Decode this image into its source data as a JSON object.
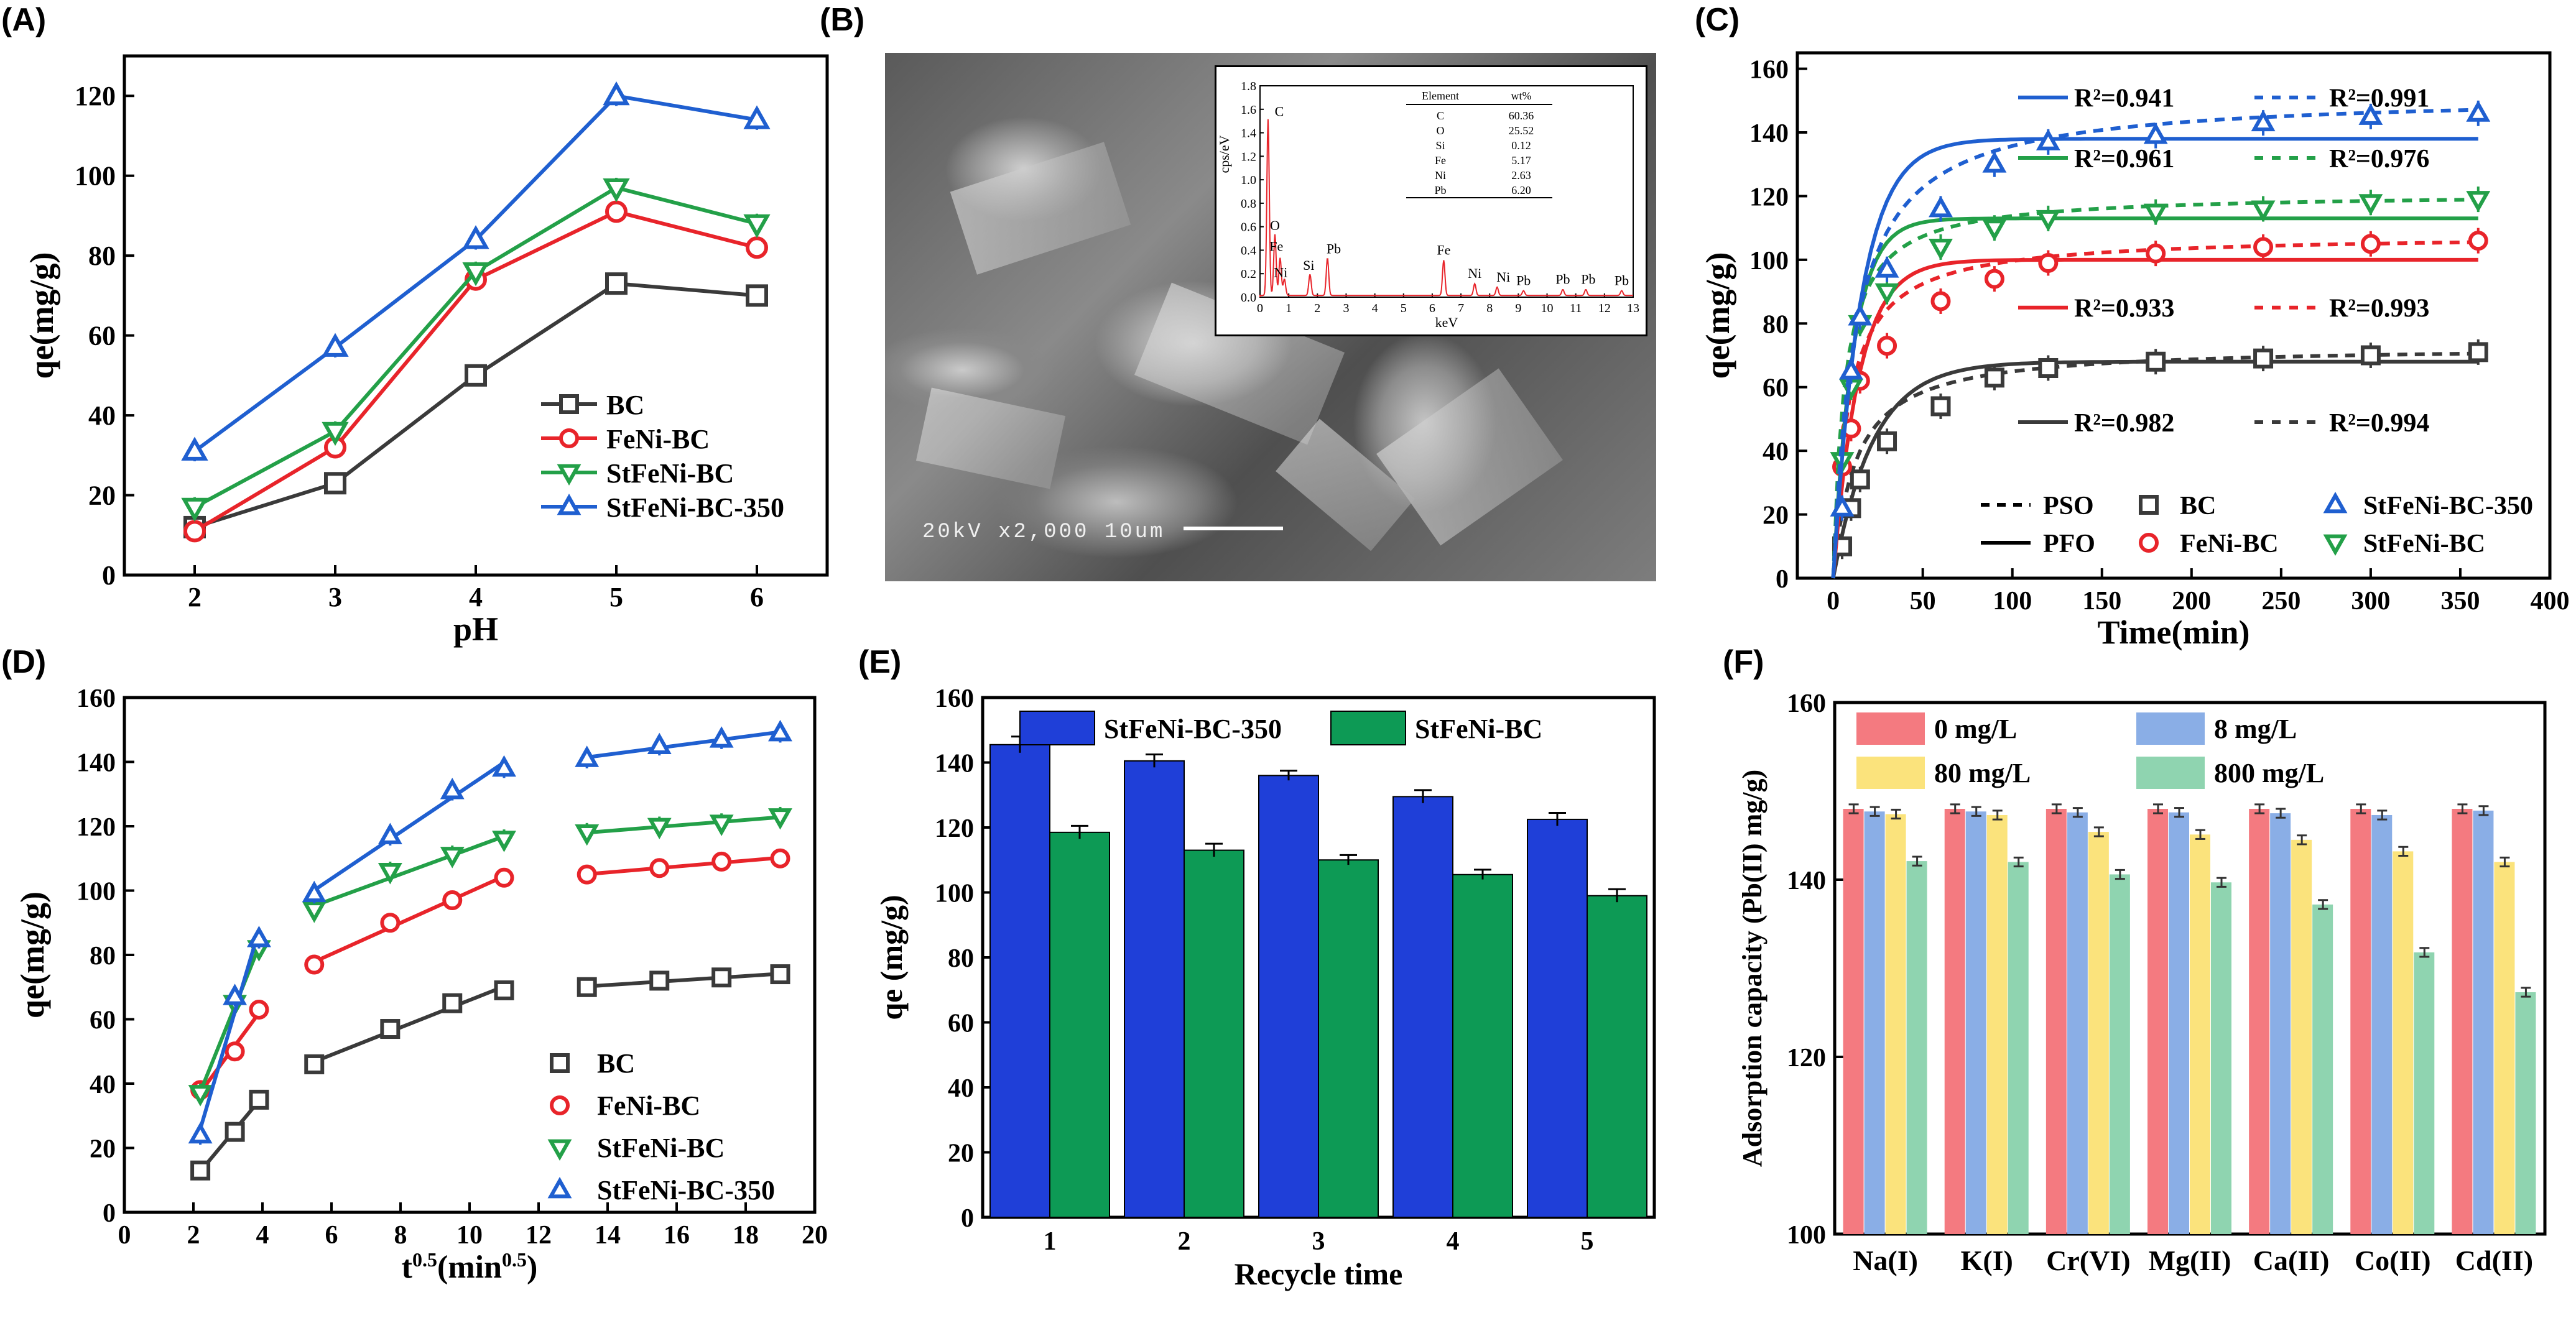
{
  "figure": {
    "panel_labels": [
      "(A)",
      "(B)",
      "(C)",
      "(D)",
      "(E)",
      "(F)"
    ],
    "colors": {
      "BC": "#3a3a3a",
      "FeNi-BC": "#e8242a",
      "StFeNi-BC": "#23a048",
      "StFeNi-BC-350": "#1f5fd0",
      "barBlue": "#1f3fd8",
      "barGreen": "#0d9a55",
      "pink": "#f47a80",
      "lightblue": "#8aaee6",
      "yellow": "#fbe37c",
      "mint": "#8fd4b0"
    }
  },
  "sem": {
    "scale_text": "20kV   x2,000   10um"
  },
  "chart_data": [
    {
      "id": "A",
      "type": "line",
      "xlabel": "pH",
      "ylabel": "qe(mg/g)",
      "xlim": [
        1.5,
        6.5
      ],
      "ylim": [
        0,
        130
      ],
      "xticks": [
        2,
        3,
        4,
        5,
        6
      ],
      "yticks": [
        0,
        20,
        40,
        60,
        80,
        100,
        120
      ],
      "x": [
        2,
        3,
        4,
        5,
        6
      ],
      "series": [
        {
          "name": "BC",
          "marker": "square",
          "color": "#3a3a3a",
          "values": [
            12,
            23,
            50,
            73,
            70
          ]
        },
        {
          "name": "FeNi-BC",
          "marker": "circle",
          "color": "#e8242a",
          "values": [
            11,
            32,
            74,
            91,
            82
          ]
        },
        {
          "name": "StFeNi-BC",
          "marker": "triangle-down",
          "color": "#23a048",
          "values": [
            17,
            36,
            76,
            97,
            88
          ]
        },
        {
          "name": "StFeNi-BC-350",
          "marker": "triangle-up",
          "color": "#1f5fd0",
          "values": [
            31,
            57,
            84,
            120,
            114
          ]
        }
      ],
      "legend": [
        "BC",
        "FeNi-BC",
        "StFeNi-BC",
        "StFeNi-BC-350"
      ]
    },
    {
      "id": "B-inset",
      "type": "line",
      "xlabel": "keV",
      "ylabel": "cps/eV",
      "xlim": [
        0,
        13
      ],
      "ylim": [
        0,
        1.8
      ],
      "xticks": [
        0,
        1,
        2,
        3,
        4,
        5,
        6,
        7,
        8,
        9,
        10,
        11,
        12,
        13
      ],
      "yticks": [
        "0.0",
        "0.2",
        "0.4",
        "0.6",
        "0.8",
        "1.0",
        "1.2",
        "1.4",
        "1.6",
        "1.8"
      ],
      "peaks": [
        {
          "label": "C",
          "x": 0.28,
          "y": 1.5
        },
        {
          "label": "O",
          "x": 0.52,
          "y": 0.52
        },
        {
          "label": "Fe",
          "x": 0.7,
          "y": 0.32
        },
        {
          "label": "Ni",
          "x": 0.85,
          "y": 0.14
        },
        {
          "label": "Si",
          "x": 1.74,
          "y": 0.18
        },
        {
          "label": "Pb",
          "x": 2.35,
          "y": 0.32
        },
        {
          "label": "Fe",
          "x": 6.4,
          "y": 0.3
        },
        {
          "label": "Ni",
          "x": 7.48,
          "y": 0.1
        },
        {
          "label": "Ni",
          "x": 8.26,
          "y": 0.07
        },
        {
          "label": "Pb",
          "x": 9.18,
          "y": 0.04
        },
        {
          "label": "Pb",
          "x": 10.55,
          "y": 0.05
        },
        {
          "label": "Pb",
          "x": 11.35,
          "y": 0.05
        },
        {
          "label": "Pb",
          "x": 12.6,
          "y": 0.04
        }
      ],
      "table": {
        "headers": [
          "Element",
          "wt%"
        ],
        "rows": [
          [
            "C",
            "60.36"
          ],
          [
            "O",
            "25.52"
          ],
          [
            "Si",
            "0.12"
          ],
          [
            "Fe",
            "5.17"
          ],
          [
            "Ni",
            "2.63"
          ],
          [
            "Pb",
            "6.20"
          ]
        ]
      }
    },
    {
      "id": "C",
      "type": "scatter",
      "xlabel": "Time(min)",
      "ylabel": "qe(mg/g)",
      "xlim": [
        -20,
        400
      ],
      "ylim": [
        0,
        165
      ],
      "xticks": [
        0,
        50,
        100,
        150,
        200,
        250,
        300,
        350,
        400
      ],
      "yticks": [
        0,
        20,
        40,
        60,
        80,
        100,
        120,
        140,
        160
      ],
      "x": [
        5,
        10,
        15,
        30,
        60,
        90,
        120,
        180,
        240,
        300,
        360
      ],
      "series": [
        {
          "name": "BC",
          "marker": "square",
          "color": "#3a3a3a",
          "values": [
            10,
            22,
            31,
            43,
            54,
            63,
            66,
            68,
            69,
            70,
            71
          ],
          "pfo": {
            "qe": 68,
            "k": 0.045
          },
          "pso": {
            "qe": 73,
            "k2": 0.0011
          }
        },
        {
          "name": "FeNi-BC",
          "marker": "circle",
          "color": "#e8242a",
          "values": [
            35,
            47,
            62,
            73,
            87,
            94,
            99,
            102,
            104,
            105,
            106
          ],
          "pfo": {
            "qe": 100,
            "k": 0.07
          },
          "pso": {
            "qe": 108,
            "k2": 0.0011
          }
        },
        {
          "name": "StFeNi-BC",
          "marker": "triangle-down",
          "color": "#23a048",
          "values": [
            37,
            60,
            80,
            90,
            104,
            110,
            113,
            115,
            116,
            118,
            119
          ],
          "pfo": {
            "qe": 113,
            "k": 0.09
          },
          "pso": {
            "qe": 121,
            "k2": 0.0013
          }
        },
        {
          "name": "StFeNi-BC-350",
          "marker": "triangle-up",
          "color": "#1f5fd0",
          "values": [
            22,
            65,
            82,
            97,
            116,
            130,
            137,
            139,
            143,
            145,
            146
          ],
          "pfo": {
            "qe": 138,
            "k": 0.065
          },
          "pso": {
            "qe": 152,
            "k2": 0.00055
          }
        }
      ],
      "annotations": [
        {
          "pfo": "R²=0.941",
          "pso": "R²=0.991",
          "color": "#1f5fd0",
          "y": 151
        },
        {
          "pfo": "R²=0.961",
          "pso": "R²=0.976",
          "color": "#23a048",
          "y": 132
        },
        {
          "pfo": "R²=0.933",
          "pso": "R²=0.993",
          "color": "#e8242a",
          "y": 85
        },
        {
          "pfo": "R²=0.982",
          "pso": "R²=0.994",
          "color": "#3a3a3a",
          "y": 49
        }
      ],
      "legend": [
        "PSO",
        "PFO",
        "BC",
        "FeNi-BC",
        "StFeNi-BC-350",
        "StFeNi-BC"
      ]
    },
    {
      "id": "D",
      "type": "scatter",
      "xlabel": "t^0.5(min^0.5)",
      "ylabel": "qe(mg/g)",
      "xlim": [
        0,
        20
      ],
      "ylim": [
        0,
        160
      ],
      "xticks": [
        0,
        2,
        4,
        6,
        8,
        10,
        12,
        14,
        16,
        18,
        20
      ],
      "yticks": [
        0,
        20,
        40,
        60,
        80,
        100,
        120,
        140,
        160
      ],
      "series": [
        {
          "name": "BC",
          "marker": "square",
          "color": "#3a3a3a",
          "segments": [
            {
              "x": [
                2.2,
                3.2,
                3.9
              ],
              "y": [
                13,
                25,
                35
              ]
            },
            {
              "x": [
                5.5,
                7.7,
                9.5,
                11
              ],
              "y": [
                46,
                57,
                65,
                69
              ]
            },
            {
              "x": [
                13.4,
                15.5,
                17.3,
                19
              ],
              "y": [
                70,
                72,
                73,
                74
              ]
            }
          ]
        },
        {
          "name": "FeNi-BC",
          "marker": "circle",
          "color": "#e8242a",
          "segments": [
            {
              "x": [
                2.2,
                3.2,
                3.9
              ],
              "y": [
                38,
                50,
                63
              ]
            },
            {
              "x": [
                5.5,
                7.7,
                9.5,
                11
              ],
              "y": [
                77,
                90,
                97,
                104
              ]
            },
            {
              "x": [
                13.4,
                15.5,
                17.3,
                19
              ],
              "y": [
                105,
                107,
                109,
                110
              ]
            }
          ]
        },
        {
          "name": "StFeNi-BC",
          "marker": "triangle-down",
          "color": "#23a048",
          "segments": [
            {
              "x": [
                2.2,
                3.2,
                3.9
              ],
              "y": [
                37,
                65,
                82
              ]
            },
            {
              "x": [
                5.5,
                7.7,
                9.5,
                11
              ],
              "y": [
                94,
                106,
                111,
                116
              ]
            },
            {
              "x": [
                13.4,
                15.5,
                17.3,
                19
              ],
              "y": [
                118,
                120,
                121,
                123
              ]
            }
          ]
        },
        {
          "name": "StFeNi-BC-350",
          "marker": "triangle-up",
          "color": "#1f5fd0",
          "segments": [
            {
              "x": [
                2.2,
                3.2,
                3.9
              ],
              "y": [
                24,
                67,
                85
              ]
            },
            {
              "x": [
                5.5,
                7.7,
                9.5,
                11
              ],
              "y": [
                99,
                117,
                131,
                138
              ]
            },
            {
              "x": [
                13.4,
                15.5,
                17.3,
                19
              ],
              "y": [
                141,
                145,
                147,
                149
              ]
            }
          ]
        }
      ],
      "legend": [
        "BC",
        "FeNi-BC",
        "StFeNi-BC",
        "StFeNi-BC-350"
      ]
    },
    {
      "id": "E",
      "type": "bar",
      "xlabel": "Recycle time",
      "ylabel": "qe (mg/g)",
      "ylim": [
        0,
        160
      ],
      "yticks": [
        0,
        20,
        40,
        60,
        80,
        100,
        120,
        140,
        160
      ],
      "categories": [
        "1",
        "2",
        "3",
        "4",
        "5"
      ],
      "series": [
        {
          "name": "StFeNi-BC-350",
          "color": "#1f3fd8",
          "values": [
            145.5,
            140.5,
            136,
            129.5,
            122.5
          ],
          "errors": [
            2.5,
            2,
            1.5,
            2,
            2
          ]
        },
        {
          "name": "StFeNi-BC",
          "color": "#0d9a55",
          "values": [
            118.5,
            113,
            110,
            105.5,
            99
          ],
          "errors": [
            2,
            2,
            1.5,
            1.5,
            2
          ]
        }
      ]
    },
    {
      "id": "F",
      "type": "bar",
      "xlabel": "",
      "ylabel": "Adsorption capacity (Pb(II) mg/g)",
      "ylim": [
        100,
        160
      ],
      "yticks": [
        100,
        120,
        140,
        160
      ],
      "categories": [
        "Na(I)",
        "K(I)",
        "Cr(VI)",
        "Mg(II)",
        "Ca(II)",
        "Co(II)",
        "Cd(II)"
      ],
      "series": [
        {
          "name": "0 mg/L",
          "color": "#f47a80",
          "values": [
            148,
            148,
            148,
            148,
            148,
            148,
            148
          ]
        },
        {
          "name": "8 mg/L",
          "color": "#8aaee6",
          "values": [
            147.7,
            147.7,
            147.6,
            147.6,
            147.5,
            147.3,
            147.8
          ]
        },
        {
          "name": "80 mg/L",
          "color": "#fbe37c",
          "values": [
            147.4,
            147.3,
            145.4,
            145.1,
            144.5,
            143.2,
            142
          ]
        },
        {
          "name": "800 mg/L",
          "color": "#8fd4b0",
          "values": [
            142.1,
            142,
            140.6,
            139.7,
            137.2,
            131.8,
            127.3
          ]
        }
      ]
    }
  ]
}
